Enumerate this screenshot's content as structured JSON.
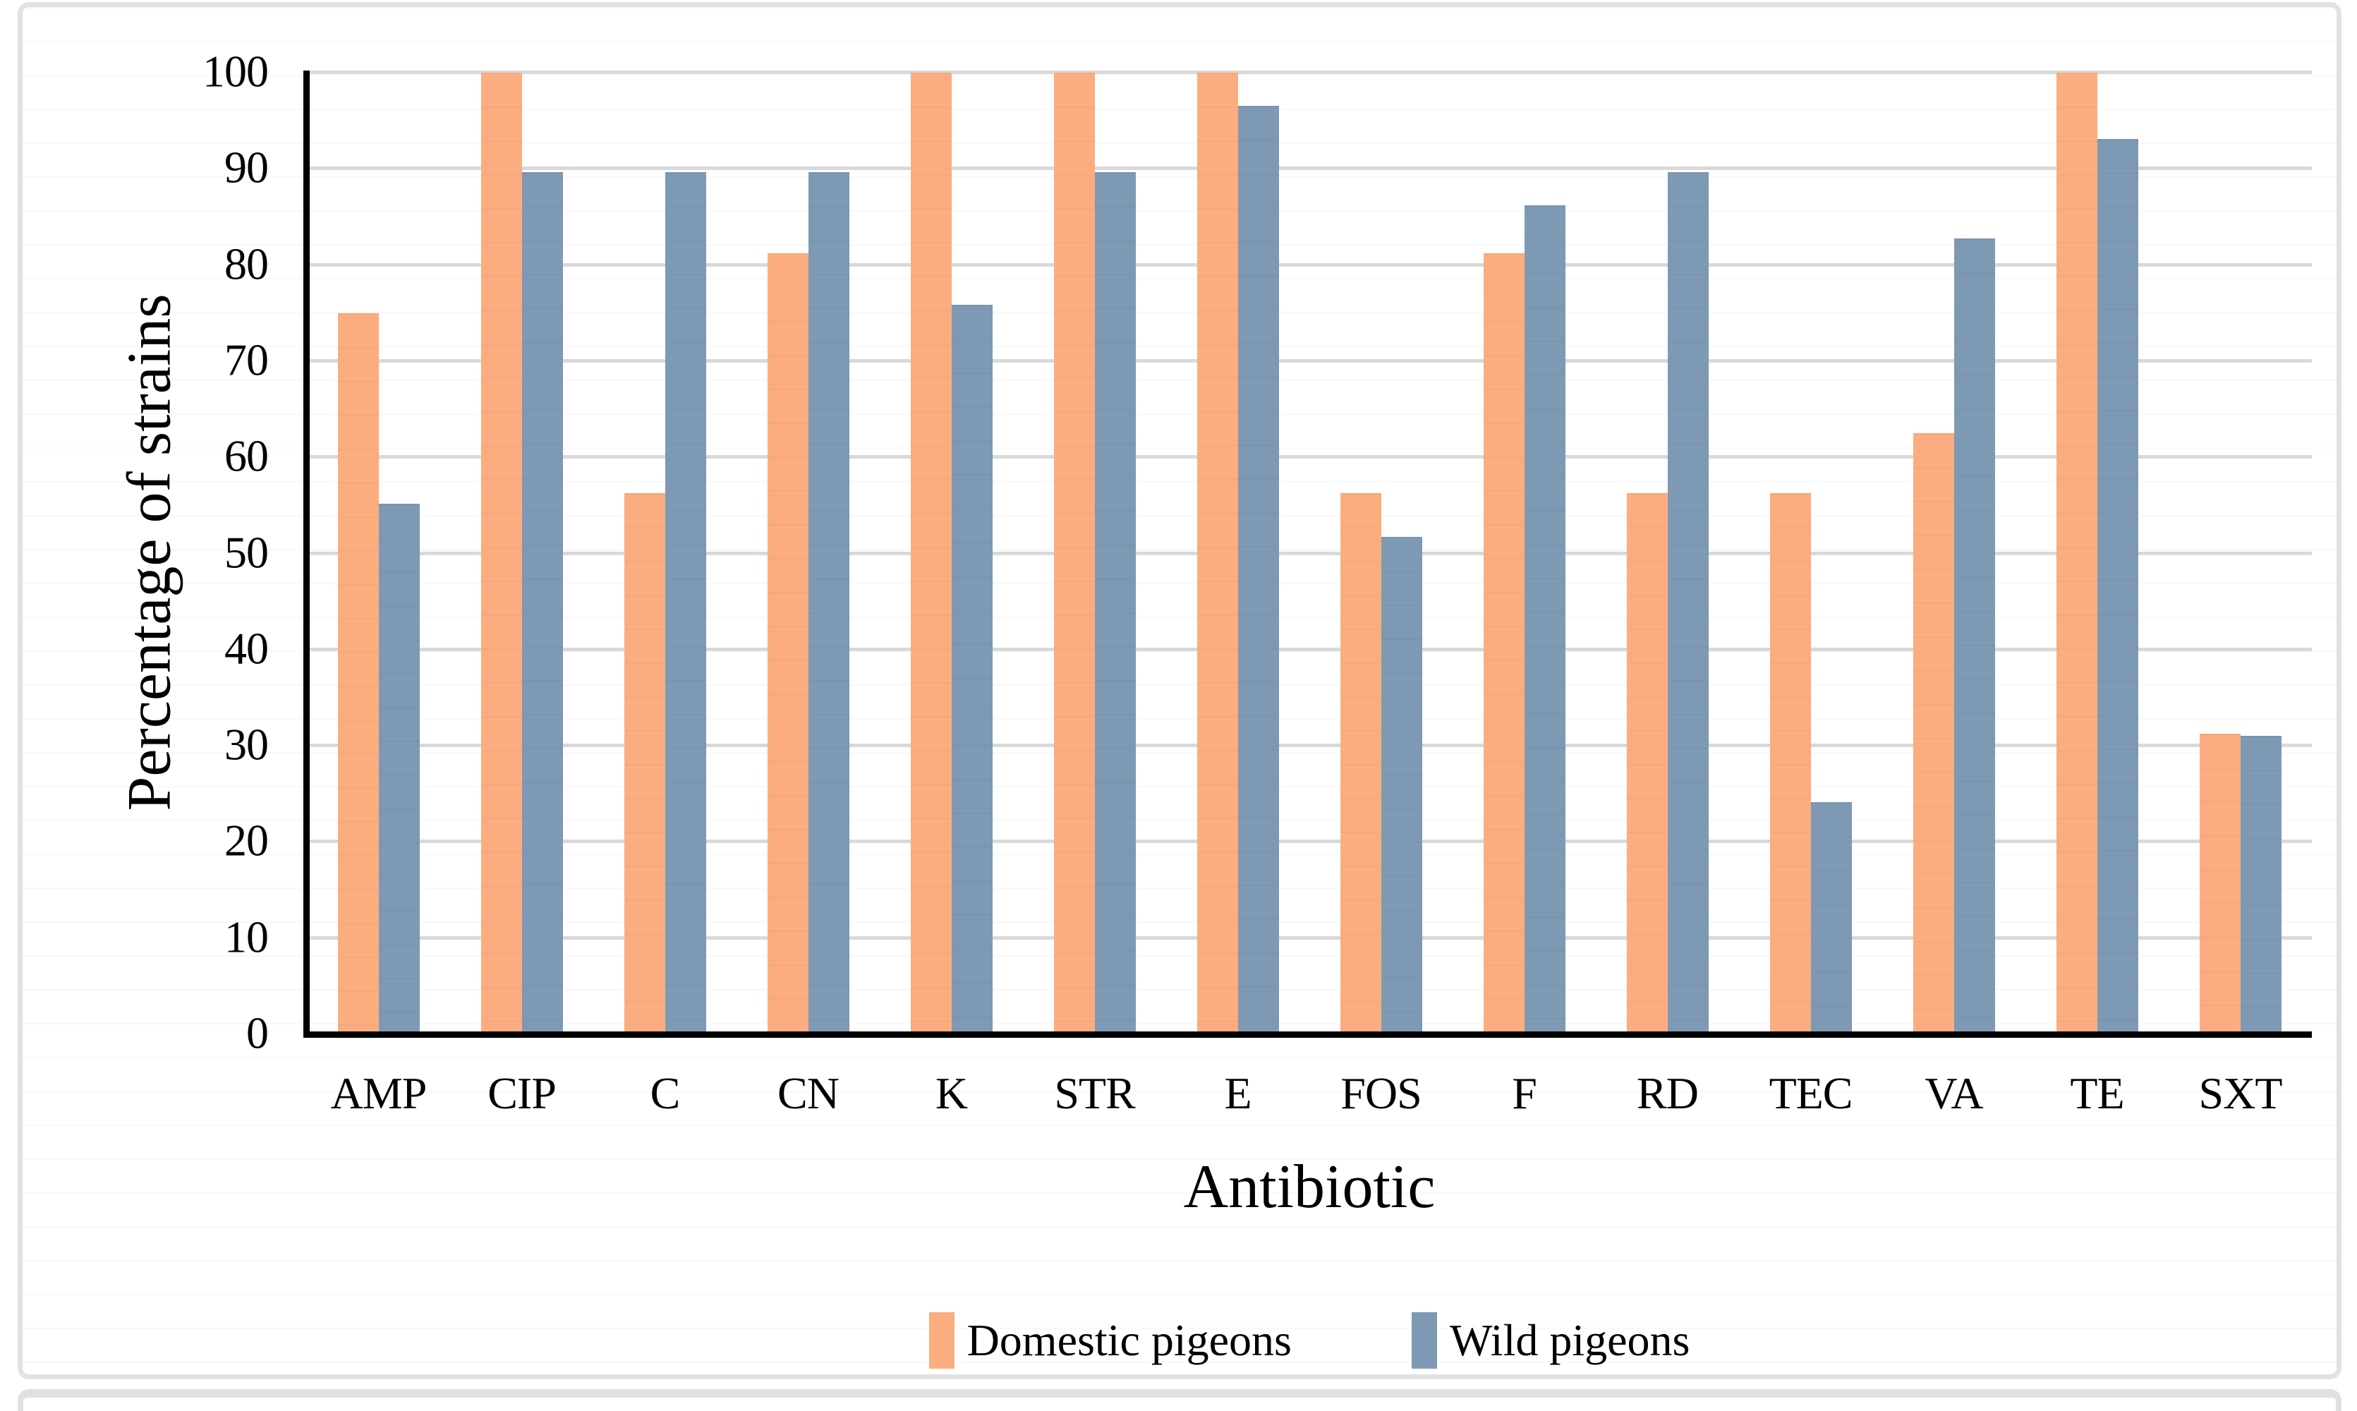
{
  "chart_data": {
    "type": "bar",
    "title": "",
    "xlabel": "Antibiotic",
    "ylabel": "Percentage of strains",
    "categories": [
      "AMP",
      "CIP",
      "C",
      "CN",
      "K",
      "STR",
      "E",
      "FOS",
      "F",
      "RD",
      "TEC",
      "VA",
      "TE",
      "SXT"
    ],
    "series": [
      {
        "name": "Domestic pigeons",
        "color": "#FBAD7F",
        "values": [
          75,
          100,
          56.25,
          81.25,
          100,
          100,
          100,
          56.25,
          81.25,
          56.25,
          56.25,
          62.5,
          100,
          31.25
        ]
      },
      {
        "name": "Wild pigeons",
        "color": "#7E99B4",
        "values": [
          55.17,
          89.66,
          89.66,
          89.66,
          75.86,
          89.66,
          96.55,
          51.72,
          86.21,
          89.66,
          24.14,
          82.76,
          93.1,
          31.03
        ]
      }
    ],
    "ylim": [
      0,
      100
    ],
    "yticks": [
      0,
      10,
      20,
      30,
      40,
      50,
      60,
      70,
      80,
      90,
      100
    ],
    "grid": true,
    "legend_position": "bottom-center"
  },
  "style": {
    "gridline_color": "#D9D9D9",
    "axis_color": "#000000",
    "panel_border_color": "#E2E2E2",
    "background": "#FFFFFF"
  }
}
